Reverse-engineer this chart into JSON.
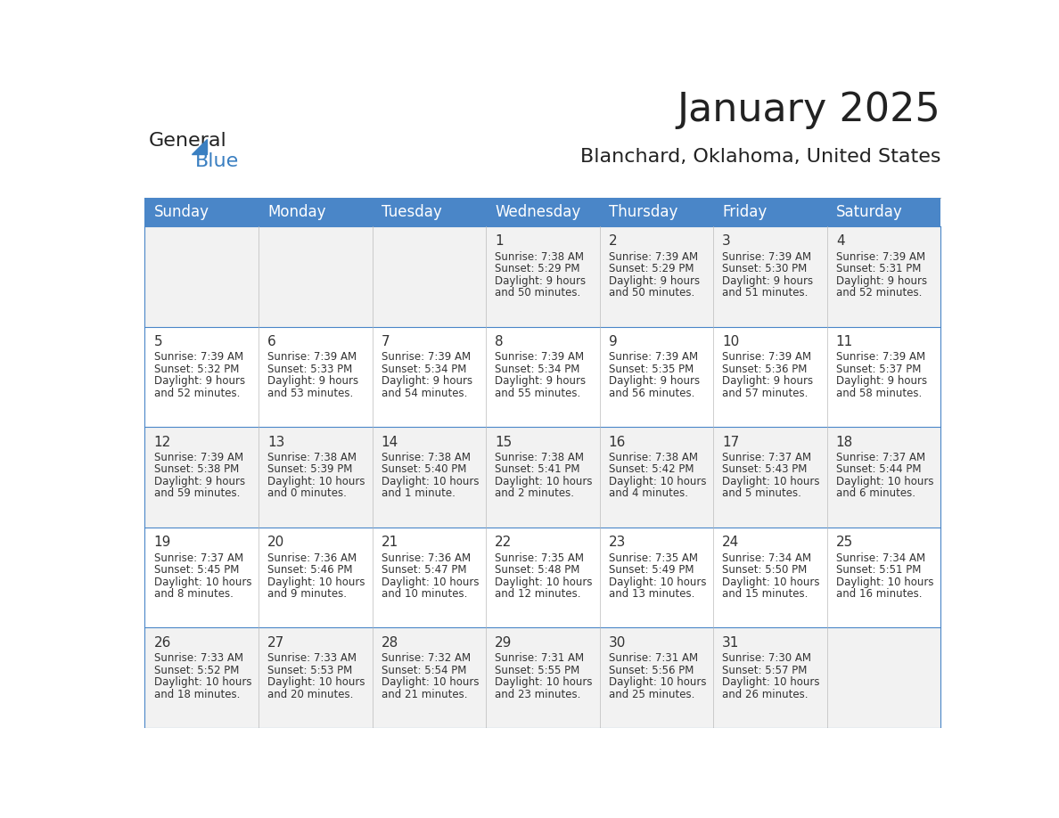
{
  "title": "January 2025",
  "subtitle": "Blanchard, Oklahoma, United States",
  "days_of_week": [
    "Sunday",
    "Monday",
    "Tuesday",
    "Wednesday",
    "Thursday",
    "Friday",
    "Saturday"
  ],
  "header_bg": "#4a86c8",
  "header_text": "#ffffff",
  "cell_bg_odd": "#f2f2f2",
  "cell_bg_even": "#ffffff",
  "cell_text": "#333333",
  "border_color": "#4a86c8",
  "title_color": "#222222",
  "subtitle_color": "#222222",
  "logo_general_color": "#222222",
  "logo_blue_color": "#3a7fc1",
  "weeks": [
    [
      {
        "day": null,
        "sunrise": null,
        "sunset": null,
        "daylight": null
      },
      {
        "day": null,
        "sunrise": null,
        "sunset": null,
        "daylight": null
      },
      {
        "day": null,
        "sunrise": null,
        "sunset": null,
        "daylight": null
      },
      {
        "day": 1,
        "sunrise": "7:38 AM",
        "sunset": "5:29 PM",
        "daylight": "9 hours and 50 minutes."
      },
      {
        "day": 2,
        "sunrise": "7:39 AM",
        "sunset": "5:29 PM",
        "daylight": "9 hours and 50 minutes."
      },
      {
        "day": 3,
        "sunrise": "7:39 AM",
        "sunset": "5:30 PM",
        "daylight": "9 hours and 51 minutes."
      },
      {
        "day": 4,
        "sunrise": "7:39 AM",
        "sunset": "5:31 PM",
        "daylight": "9 hours and 52 minutes."
      }
    ],
    [
      {
        "day": 5,
        "sunrise": "7:39 AM",
        "sunset": "5:32 PM",
        "daylight": "9 hours and 52 minutes."
      },
      {
        "day": 6,
        "sunrise": "7:39 AM",
        "sunset": "5:33 PM",
        "daylight": "9 hours and 53 minutes."
      },
      {
        "day": 7,
        "sunrise": "7:39 AM",
        "sunset": "5:34 PM",
        "daylight": "9 hours and 54 minutes."
      },
      {
        "day": 8,
        "sunrise": "7:39 AM",
        "sunset": "5:34 PM",
        "daylight": "9 hours and 55 minutes."
      },
      {
        "day": 9,
        "sunrise": "7:39 AM",
        "sunset": "5:35 PM",
        "daylight": "9 hours and 56 minutes."
      },
      {
        "day": 10,
        "sunrise": "7:39 AM",
        "sunset": "5:36 PM",
        "daylight": "9 hours and 57 minutes."
      },
      {
        "day": 11,
        "sunrise": "7:39 AM",
        "sunset": "5:37 PM",
        "daylight": "9 hours and 58 minutes."
      }
    ],
    [
      {
        "day": 12,
        "sunrise": "7:39 AM",
        "sunset": "5:38 PM",
        "daylight": "9 hours and 59 minutes."
      },
      {
        "day": 13,
        "sunrise": "7:38 AM",
        "sunset": "5:39 PM",
        "daylight": "10 hours and 0 minutes."
      },
      {
        "day": 14,
        "sunrise": "7:38 AM",
        "sunset": "5:40 PM",
        "daylight": "10 hours and 1 minute."
      },
      {
        "day": 15,
        "sunrise": "7:38 AM",
        "sunset": "5:41 PM",
        "daylight": "10 hours and 2 minutes."
      },
      {
        "day": 16,
        "sunrise": "7:38 AM",
        "sunset": "5:42 PM",
        "daylight": "10 hours and 4 minutes."
      },
      {
        "day": 17,
        "sunrise": "7:37 AM",
        "sunset": "5:43 PM",
        "daylight": "10 hours and 5 minutes."
      },
      {
        "day": 18,
        "sunrise": "7:37 AM",
        "sunset": "5:44 PM",
        "daylight": "10 hours and 6 minutes."
      }
    ],
    [
      {
        "day": 19,
        "sunrise": "7:37 AM",
        "sunset": "5:45 PM",
        "daylight": "10 hours and 8 minutes."
      },
      {
        "day": 20,
        "sunrise": "7:36 AM",
        "sunset": "5:46 PM",
        "daylight": "10 hours and 9 minutes."
      },
      {
        "day": 21,
        "sunrise": "7:36 AM",
        "sunset": "5:47 PM",
        "daylight": "10 hours and 10 minutes."
      },
      {
        "day": 22,
        "sunrise": "7:35 AM",
        "sunset": "5:48 PM",
        "daylight": "10 hours and 12 minutes."
      },
      {
        "day": 23,
        "sunrise": "7:35 AM",
        "sunset": "5:49 PM",
        "daylight": "10 hours and 13 minutes."
      },
      {
        "day": 24,
        "sunrise": "7:34 AM",
        "sunset": "5:50 PM",
        "daylight": "10 hours and 15 minutes."
      },
      {
        "day": 25,
        "sunrise": "7:34 AM",
        "sunset": "5:51 PM",
        "daylight": "10 hours and 16 minutes."
      }
    ],
    [
      {
        "day": 26,
        "sunrise": "7:33 AM",
        "sunset": "5:52 PM",
        "daylight": "10 hours and 18 minutes."
      },
      {
        "day": 27,
        "sunrise": "7:33 AM",
        "sunset": "5:53 PM",
        "daylight": "10 hours and 20 minutes."
      },
      {
        "day": 28,
        "sunrise": "7:32 AM",
        "sunset": "5:54 PM",
        "daylight": "10 hours and 21 minutes."
      },
      {
        "day": 29,
        "sunrise": "7:31 AM",
        "sunset": "5:55 PM",
        "daylight": "10 hours and 23 minutes."
      },
      {
        "day": 30,
        "sunrise": "7:31 AM",
        "sunset": "5:56 PM",
        "daylight": "10 hours and 25 minutes."
      },
      {
        "day": 31,
        "sunrise": "7:30 AM",
        "sunset": "5:57 PM",
        "daylight": "10 hours and 26 minutes."
      },
      {
        "day": null,
        "sunrise": null,
        "sunset": null,
        "daylight": null
      }
    ]
  ]
}
